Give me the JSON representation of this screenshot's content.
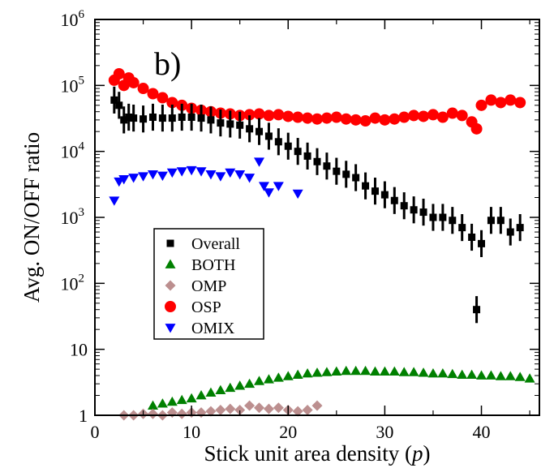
{
  "chart_data": {
    "type": "scatter",
    "panel_label": "b)",
    "xlabel_main": "Stick unit area density (",
    "xlabel_var": "p",
    "xlabel_end": ")",
    "ylabel": "Avg. ON/OFF ratio",
    "xlim": [
      0,
      46
    ],
    "ylim": [
      1,
      1000000
    ],
    "yscale": "log",
    "grid": false,
    "legend_position": "lower-left",
    "x_ticks": [
      "0",
      "10",
      "20",
      "30",
      "40"
    ],
    "x_tick_values": [
      0,
      10,
      20,
      30,
      40
    ],
    "y_ticks": [
      {
        "value": 1,
        "base": "1",
        "exp": ""
      },
      {
        "value": 10,
        "base": "10",
        "exp": ""
      },
      {
        "value": 100,
        "base": "10",
        "exp": "2"
      },
      {
        "value": 1000,
        "base": "10",
        "exp": "3"
      },
      {
        "value": 10000,
        "base": "10",
        "exp": "4"
      },
      {
        "value": 100000,
        "base": "10",
        "exp": "5"
      },
      {
        "value": 1000000,
        "base": "10",
        "exp": "6"
      }
    ],
    "series": [
      {
        "name": "Overall",
        "marker": "square",
        "color": "#000000",
        "errorbars": true,
        "x": [
          2,
          2.5,
          3,
          3.5,
          4,
          5,
          6,
          7,
          8,
          9,
          10,
          11,
          12,
          13,
          14,
          15,
          16,
          17,
          18,
          19,
          20,
          21,
          22,
          23,
          24,
          25,
          26,
          27,
          28,
          29,
          30,
          31,
          32,
          33,
          34,
          35,
          36,
          37,
          38,
          39,
          39.5,
          40,
          41,
          42,
          43,
          44
        ],
        "y": [
          60000,
          50000,
          30000,
          33000,
          32000,
          31000,
          33000,
          32000,
          32000,
          33000,
          33000,
          32000,
          30000,
          27000,
          26000,
          25000,
          22000,
          20000,
          17000,
          14000,
          12000,
          10000,
          8500,
          7000,
          6000,
          5000,
          4500,
          4000,
          3000,
          2500,
          2200,
          1800,
          1500,
          1300,
          1200,
          1000,
          1000,
          900,
          700,
          500,
          40,
          400,
          900,
          900,
          600,
          700
        ]
      },
      {
        "name": "BOTH",
        "marker": "triangle-up",
        "color": "#008000",
        "x": [
          6,
          7,
          8,
          9,
          10,
          11,
          12,
          13,
          14,
          15,
          16,
          17,
          18,
          19,
          20,
          21,
          22,
          23,
          24,
          25,
          26,
          27,
          28,
          29,
          30,
          31,
          32,
          33,
          34,
          35,
          36,
          37,
          38,
          39,
          40,
          41,
          42,
          43,
          44,
          45
        ],
        "y": [
          1.4,
          1.5,
          1.6,
          1.7,
          1.8,
          2.0,
          2.2,
          2.4,
          2.6,
          2.8,
          3.0,
          3.3,
          3.5,
          3.7,
          3.9,
          4.1,
          4.3,
          4.4,
          4.5,
          4.6,
          4.7,
          4.7,
          4.7,
          4.6,
          4.6,
          4.6,
          4.5,
          4.5,
          4.4,
          4.3,
          4.3,
          4.2,
          4.1,
          4.1,
          4.0,
          4.0,
          3.9,
          3.9,
          3.8,
          3.6
        ]
      },
      {
        "name": "OMP",
        "marker": "diamond",
        "color": "#bc8f8f",
        "x": [
          3,
          4,
          5,
          6,
          7,
          8,
          9,
          10,
          11,
          12,
          13,
          14,
          15,
          16,
          17,
          18,
          19,
          20,
          21,
          22,
          23
        ],
        "y": [
          1.0,
          1.0,
          1.05,
          1.05,
          1.0,
          1.1,
          1.05,
          1.1,
          1.1,
          1.15,
          1.2,
          1.25,
          1.2,
          1.4,
          1.3,
          1.25,
          1.3,
          1.2,
          1.15,
          1.2,
          1.4
        ]
      },
      {
        "name": "OSP",
        "marker": "circle",
        "color": "#ff0000",
        "x": [
          2,
          2.5,
          3,
          3.5,
          4,
          5,
          6,
          7,
          8,
          9,
          10,
          11,
          12,
          13,
          14,
          15,
          16,
          17,
          18,
          19,
          20,
          21,
          22,
          23,
          24,
          25,
          26,
          27,
          28,
          29,
          30,
          31,
          32,
          33,
          34,
          35,
          36,
          37,
          38,
          39,
          39.5,
          40,
          41,
          42,
          43,
          44
        ],
        "y": [
          120000,
          150000,
          100000,
          130000,
          110000,
          90000,
          75000,
          65000,
          55000,
          50000,
          45000,
          42000,
          40000,
          38000,
          37000,
          35000,
          36000,
          37000,
          35000,
          36000,
          34000,
          33000,
          32000,
          31000,
          32000,
          33000,
          31000,
          30000,
          29000,
          32000,
          30000,
          31000,
          33000,
          35000,
          34000,
          36000,
          33000,
          38000,
          35000,
          28000,
          22000,
          50000,
          60000,
          55000,
          60000,
          55000
        ]
      },
      {
        "name": "OMIX",
        "marker": "triangle-down",
        "color": "#0000ff",
        "x": [
          2,
          2.5,
          3,
          4,
          5,
          6,
          7,
          8,
          9,
          10,
          11,
          12,
          13,
          14,
          15,
          16,
          17,
          17.5,
          18,
          19,
          21
        ],
        "y": [
          1800,
          3500,
          3800,
          4000,
          4200,
          4500,
          4300,
          4800,
          5000,
          5200,
          5000,
          4500,
          4200,
          4800,
          4500,
          4000,
          7000,
          3000,
          2400,
          3000,
          2300
        ]
      }
    ]
  }
}
